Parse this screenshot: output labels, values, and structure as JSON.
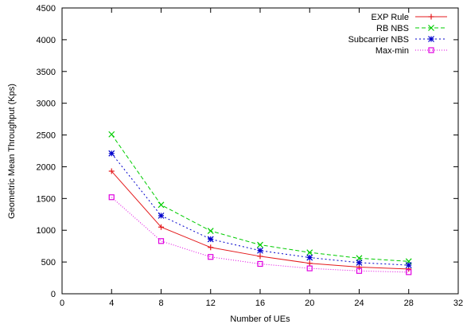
{
  "chart_data": {
    "type": "line",
    "title": "",
    "xlabel": "Number of UEs",
    "ylabel": "Geometric Mean Throughput (Kps)",
    "xlim": [
      0,
      32
    ],
    "ylim": [
      0,
      4500
    ],
    "xticks": [
      0,
      4,
      8,
      12,
      16,
      20,
      24,
      28,
      32
    ],
    "yticks": [
      0,
      500,
      1000,
      1500,
      2000,
      2500,
      3000,
      3500,
      4000,
      4500
    ],
    "grid": false,
    "legend_position": "top-right",
    "x": [
      4,
      8,
      12,
      16,
      20,
      24,
      28
    ],
    "series": [
      {
        "name": "EXP Rule",
        "color": "#e41a1c",
        "dash": "solid",
        "marker": "plus",
        "values": [
          1930,
          1050,
          730,
          590,
          480,
          420,
          390
        ]
      },
      {
        "name": "RB NBS",
        "color": "#00cc00",
        "dash": "dashed",
        "marker": "x",
        "values": [
          2510,
          1400,
          990,
          770,
          650,
          560,
          510
        ]
      },
      {
        "name": "Subcarrier NBS",
        "color": "#0000cc",
        "dash": "dotted",
        "marker": "star",
        "values": [
          2210,
          1230,
          860,
          680,
          570,
          490,
          450
        ]
      },
      {
        "name": "Max-min",
        "color": "#e000e0",
        "dash": "finedot",
        "marker": "square",
        "values": [
          1520,
          830,
          580,
          470,
          400,
          360,
          340
        ]
      }
    ]
  }
}
